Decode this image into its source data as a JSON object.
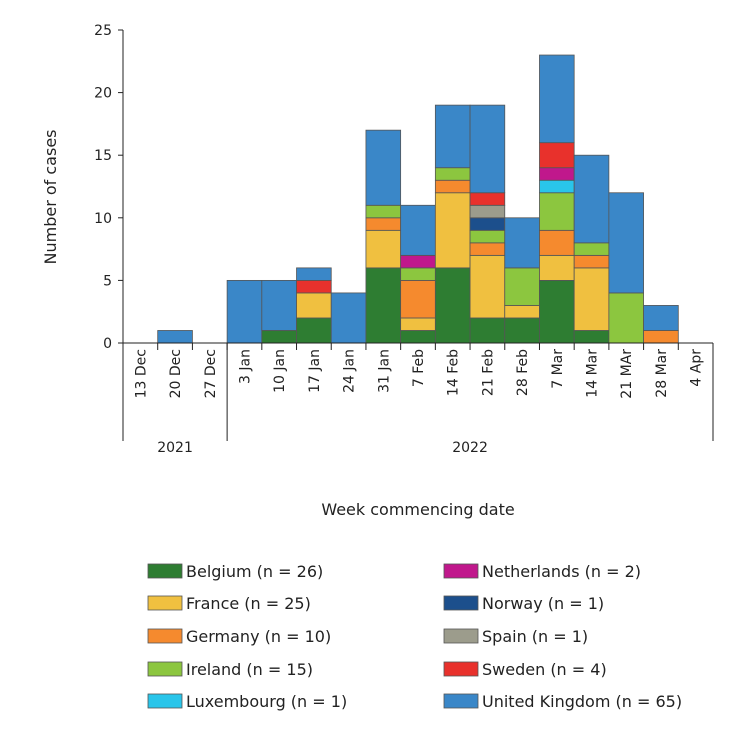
{
  "chart_data": {
    "type": "bar",
    "stacked": true,
    "xlabel": "Week commencing date",
    "ylabel": "Number of cases",
    "ylim": [
      0,
      25
    ],
    "yticks": [
      0,
      5,
      10,
      15,
      20,
      25
    ],
    "grid": false,
    "legend_position": "bottom",
    "categories": [
      "13 Dec",
      "20 Dec",
      "27 Dec",
      "3 Jan",
      "10 Jan",
      "17 Jan",
      "24 Jan",
      "31 Jan",
      "7 Feb",
      "14 Feb",
      "21 Feb",
      "28 Feb",
      "7 Mar",
      "14 Mar",
      "21 MAr",
      "28 Mar",
      "4 Apr"
    ],
    "year_groups": [
      {
        "label": "2021",
        "categories": [
          "13 Dec",
          "20 Dec",
          "27 Dec"
        ]
      },
      {
        "label": "2022",
        "categories": [
          "3 Jan",
          "10 Jan",
          "17 Jan",
          "24 Jan",
          "31 Jan",
          "7 Feb",
          "14 Feb",
          "21 Feb",
          "28 Feb",
          "7 Mar",
          "14 Mar",
          "21 MAr",
          "28 Mar",
          "4 Apr"
        ]
      }
    ],
    "series": [
      {
        "name": "Belgium (n = 26)",
        "color": "#2e7d32",
        "values": [
          0,
          0,
          0,
          0,
          1,
          2,
          0,
          6,
          1,
          6,
          2,
          2,
          5,
          1,
          0,
          0,
          0
        ]
      },
      {
        "name": "France (n = 25)",
        "color": "#f0c040",
        "values": [
          0,
          0,
          0,
          0,
          0,
          2,
          0,
          3,
          1,
          6,
          5,
          1,
          2,
          5,
          0,
          0,
          0
        ]
      },
      {
        "name": "Germany (n = 10)",
        "color": "#f58a2e",
        "values": [
          0,
          0,
          0,
          0,
          0,
          0,
          0,
          1,
          3,
          1,
          1,
          0,
          2,
          1,
          0,
          1,
          0
        ]
      },
      {
        "name": "Ireland (n = 15)",
        "color": "#8cc63f",
        "values": [
          0,
          0,
          0,
          0,
          0,
          0,
          0,
          1,
          1,
          1,
          1,
          3,
          3,
          1,
          4,
          0,
          0
        ]
      },
      {
        "name": "Luxembourg (n = 1)",
        "color": "#29c5ea",
        "values": [
          0,
          0,
          0,
          0,
          0,
          0,
          0,
          0,
          0,
          0,
          0,
          0,
          1,
          0,
          0,
          0,
          0
        ]
      },
      {
        "name": "Netherlands (n = 2)",
        "color": "#c0188c",
        "values": [
          0,
          0,
          0,
          0,
          0,
          0,
          0,
          0,
          1,
          0,
          0,
          0,
          1,
          0,
          0,
          0,
          0
        ]
      },
      {
        "name": "Norway (n = 1)",
        "color": "#1c4f8c",
        "values": [
          0,
          0,
          0,
          0,
          0,
          0,
          0,
          0,
          0,
          0,
          1,
          0,
          0,
          0,
          0,
          0,
          0
        ]
      },
      {
        "name": "Spain (n = 1)",
        "color": "#9c9c8c",
        "values": [
          0,
          0,
          0,
          0,
          0,
          0,
          0,
          0,
          0,
          0,
          1,
          0,
          0,
          0,
          0,
          0,
          0
        ]
      },
      {
        "name": "Sweden (n = 4)",
        "color": "#e8312c",
        "values": [
          0,
          0,
          0,
          0,
          0,
          1,
          0,
          0,
          0,
          0,
          1,
          0,
          2,
          0,
          0,
          0,
          0
        ]
      },
      {
        "name": "United Kingdom (n = 65)",
        "color": "#3a87c8",
        "values": [
          0,
          1,
          0,
          5,
          4,
          1,
          4,
          6,
          4,
          5,
          7,
          4,
          7,
          7,
          8,
          2,
          0
        ]
      }
    ]
  }
}
